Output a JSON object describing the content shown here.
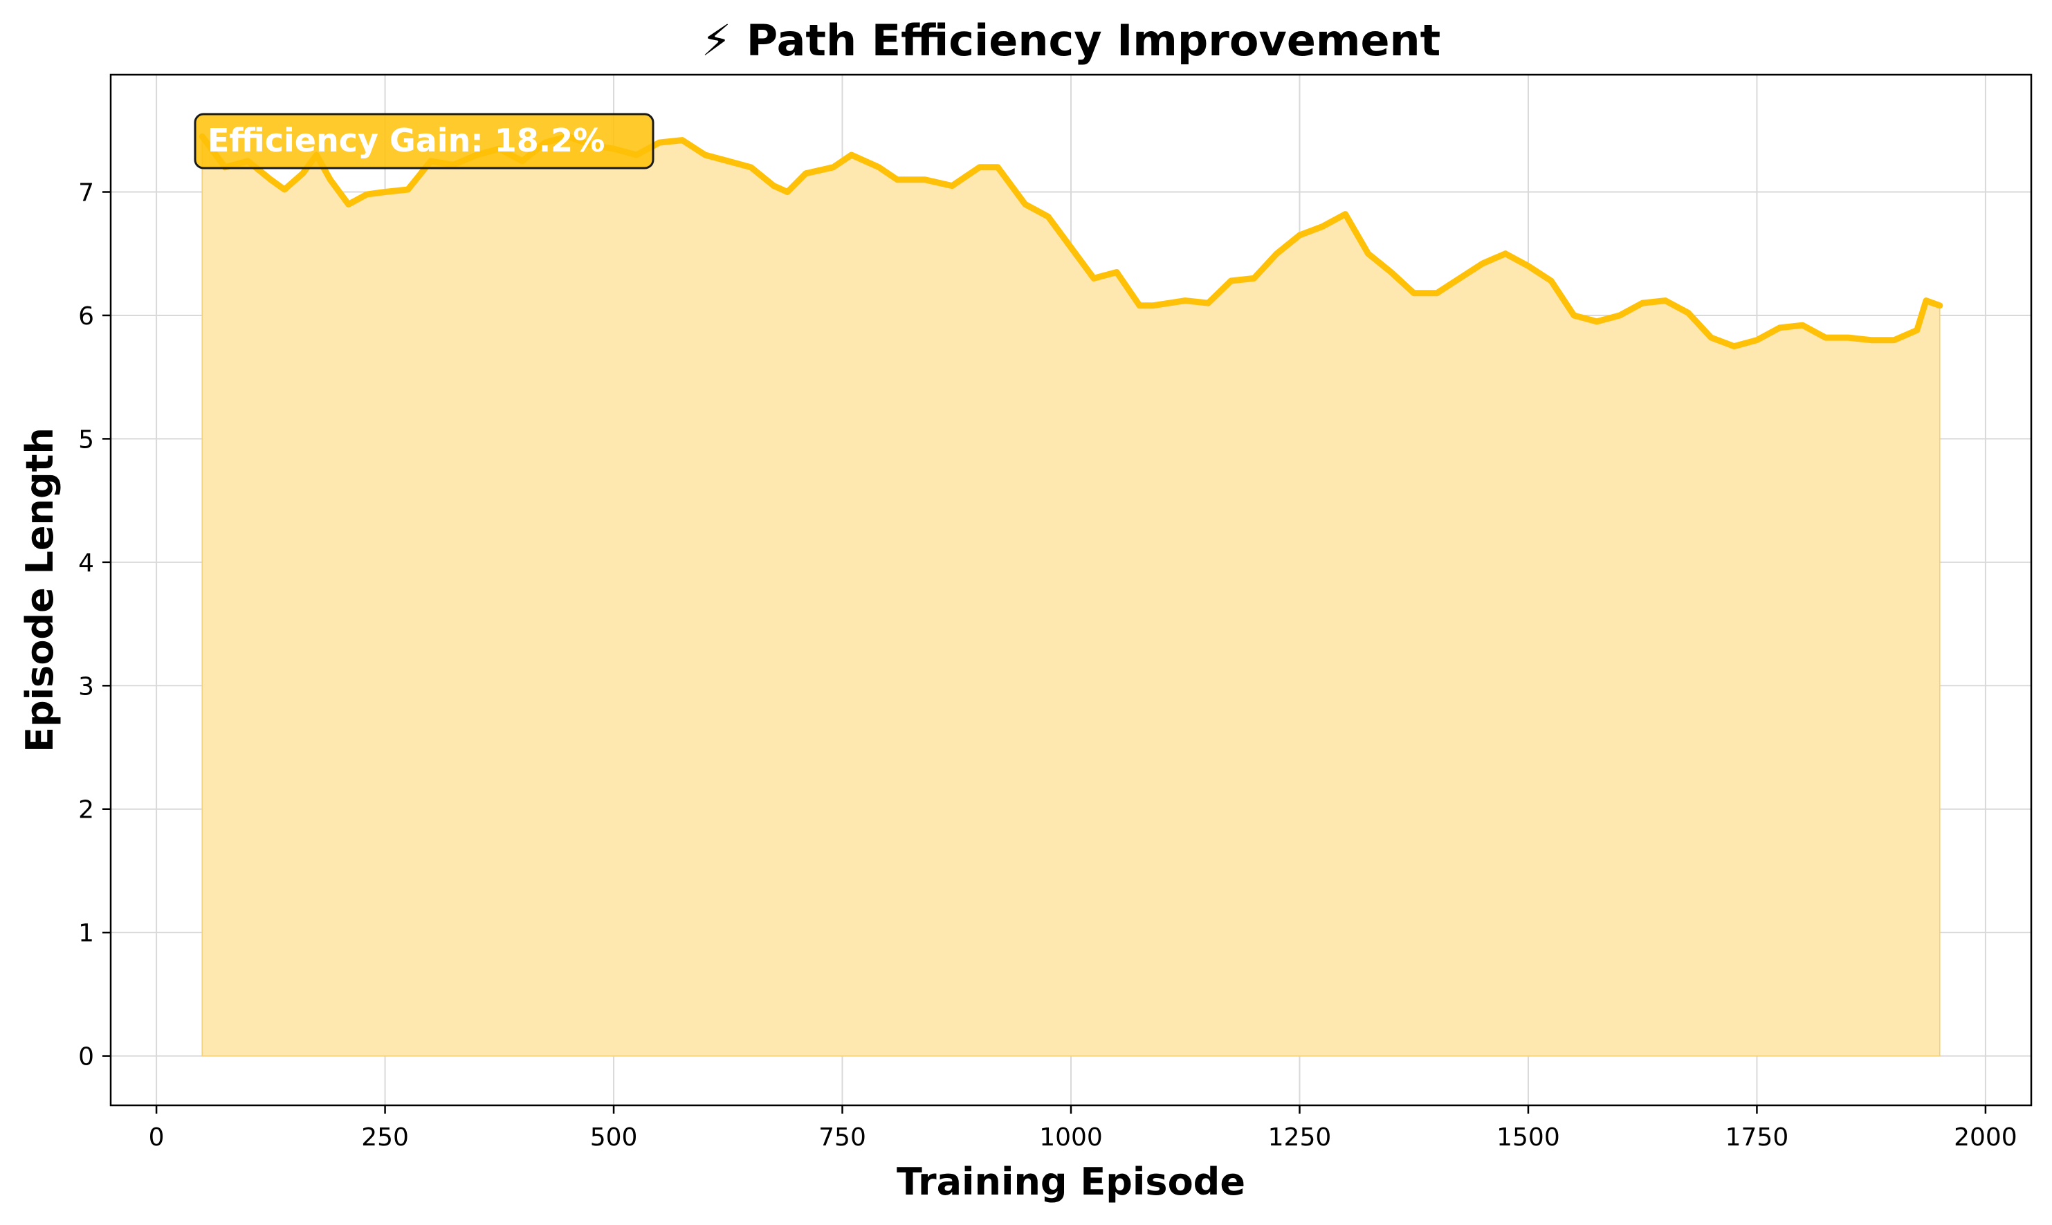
{
  "chart_data": {
    "type": "area",
    "title": "⚡ Path Efficiency Improvement",
    "xlabel": "Training Episode",
    "ylabel": "Episode Length",
    "xlim": [
      -50,
      2050
    ],
    "ylim": [
      -0.4,
      7.95
    ],
    "xticks": [
      0,
      250,
      500,
      750,
      1000,
      1250,
      1500,
      1750,
      2000
    ],
    "yticks": [
      0,
      1,
      2,
      3,
      4,
      5,
      6,
      7
    ],
    "grid": true,
    "colors": {
      "line": "#FFC107",
      "fill": "#FFE7B0",
      "annotation_bg": "#FFC107",
      "annotation_border": "#1a1a1a"
    },
    "annotation": {
      "text": "Efficiency Gain: 18.2%",
      "position": "top-left"
    },
    "series": [
      {
        "x": [
          50,
          75,
          100,
          125,
          140,
          160,
          175,
          190,
          210,
          230,
          250,
          275,
          300,
          325,
          350,
          375,
          400,
          425,
          450,
          475,
          500,
          525,
          550,
          575,
          600,
          625,
          650,
          675,
          690,
          710,
          740,
          760,
          790,
          810,
          840,
          870,
          900,
          920,
          950,
          975,
          1000,
          1025,
          1050,
          1075,
          1090,
          1125,
          1150,
          1175,
          1200,
          1225,
          1250,
          1275,
          1300,
          1325,
          1350,
          1375,
          1400,
          1425,
          1450,
          1475,
          1500,
          1525,
          1550,
          1575,
          1600,
          1625,
          1650,
          1675,
          1700,
          1725,
          1750,
          1775,
          1800,
          1825,
          1850,
          1875,
          1900,
          1925,
          1935,
          1950
        ],
        "y": [
          7.45,
          7.2,
          7.25,
          7.1,
          7.02,
          7.15,
          7.3,
          7.1,
          6.9,
          6.98,
          7.0,
          7.02,
          7.25,
          7.22,
          7.3,
          7.35,
          7.25,
          7.4,
          7.45,
          7.38,
          7.35,
          7.3,
          7.4,
          7.42,
          7.3,
          7.25,
          7.2,
          7.05,
          7.0,
          7.15,
          7.2,
          7.3,
          7.2,
          7.1,
          7.1,
          7.05,
          7.2,
          7.2,
          6.9,
          6.8,
          6.55,
          6.3,
          6.35,
          6.08,
          6.08,
          6.12,
          6.1,
          6.28,
          6.3,
          6.5,
          6.65,
          6.72,
          6.82,
          6.5,
          6.35,
          6.18,
          6.18,
          6.3,
          6.42,
          6.5,
          6.4,
          6.28,
          6.0,
          5.95,
          6.0,
          6.1,
          6.12,
          6.02,
          5.82,
          5.75,
          5.8,
          5.9,
          5.92,
          5.82,
          5.82,
          5.8,
          5.8,
          5.88,
          6.12,
          6.08
        ]
      }
    ]
  }
}
